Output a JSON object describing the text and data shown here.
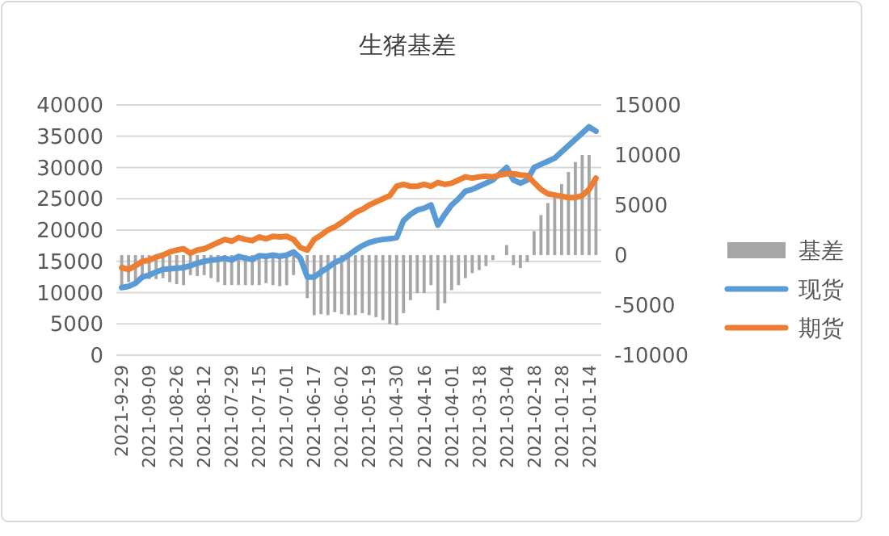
{
  "chart_data": {
    "type": "bar",
    "title": "生猪基差",
    "categories": [
      "2021-9-29",
      null,
      null,
      null,
      "2021-09-09",
      null,
      null,
      null,
      "2021-08-26",
      null,
      null,
      null,
      "2021-08-12",
      null,
      null,
      null,
      "2021-07-29",
      null,
      null,
      null,
      "2021-07-15",
      null,
      null,
      null,
      "2021-07-01",
      null,
      null,
      null,
      "2021-06-17",
      null,
      null,
      null,
      "2021-06-02",
      null,
      null,
      null,
      "2021-05-19",
      null,
      null,
      null,
      "2021-04-30",
      null,
      null,
      null,
      "2021-04-16",
      null,
      null,
      null,
      "2021-04-01",
      null,
      null,
      null,
      "2021-03-18",
      null,
      null,
      null,
      "2021-03-04",
      null,
      null,
      null,
      "2021-02-18",
      null,
      null,
      null,
      "2021-01-28",
      null,
      null,
      null,
      "2021-01-14",
      null
    ],
    "series": [
      {
        "name": "基差",
        "axis": "y2",
        "color": "#a6a6a6",
        "values": [
          -3200,
          -2700,
          -2800,
          -2500,
          -2400,
          -2400,
          -2300,
          -2700,
          -2900,
          -3000,
          -2000,
          -2100,
          -2000,
          -2300,
          -2700,
          -3000,
          -3000,
          -3000,
          -3000,
          -3000,
          -3000,
          -2800,
          -3000,
          -3100,
          -3000,
          -2000,
          null,
          -4300,
          -6000,
          -5900,
          -6000,
          -5700,
          -5900,
          -6000,
          -6000,
          -5800,
          -6000,
          -6200,
          -6500,
          -6900,
          -7000,
          -5800,
          -4500,
          -3800,
          -3800,
          -3000,
          -5500,
          -4800,
          -3500,
          -3000,
          -2300,
          -1800,
          -1500,
          -1100,
          -500,
          null,
          1000,
          -1000,
          -1300,
          -700,
          2400,
          4000,
          5200,
          5900,
          7100,
          8300,
          9300,
          10000,
          10000,
          7500
        ]
      },
      {
        "name": "现货",
        "type": "line",
        "color": "#5b9bd5",
        "values": [
          10800,
          11000,
          11500,
          12500,
          12800,
          13300,
          13700,
          13800,
          13900,
          14000,
          14300,
          14700,
          15000,
          15200,
          15300,
          15500,
          15200,
          15800,
          15500,
          15300,
          15900,
          15800,
          16000,
          15800,
          16000,
          16500,
          15500,
          12500,
          12500,
          13300,
          14000,
          14800,
          15300,
          16000,
          16800,
          17500,
          18000,
          18300,
          18500,
          18600,
          18800,
          21500,
          22500,
          23200,
          23500,
          24000,
          20800,
          22500,
          24000,
          25000,
          26200,
          26500,
          27000,
          27500,
          28000,
          29000,
          30000,
          28000,
          27500,
          28000,
          30000,
          30500,
          31000,
          31500,
          32500,
          33500,
          34500,
          35500,
          36500,
          35800
        ]
      },
      {
        "name": "期货",
        "type": "line",
        "color": "#ed7d31",
        "values": [
          14000,
          13700,
          14300,
          15000,
          15200,
          15700,
          16000,
          16500,
          16800,
          17000,
          16300,
          16800,
          17000,
          17500,
          18000,
          18500,
          18200,
          18800,
          18500,
          18300,
          18900,
          18600,
          19000,
          18900,
          19000,
          18500,
          17200,
          16800,
          18500,
          19200,
          20000,
          20500,
          21200,
          22000,
          22800,
          23300,
          24000,
          24500,
          25000,
          25500,
          27000,
          27300,
          27000,
          27000,
          27300,
          27000,
          27600,
          27300,
          27500,
          28000,
          28500,
          28300,
          28500,
          28600,
          28500,
          28800,
          29000,
          29000,
          28800,
          28700,
          27600,
          26500,
          25800,
          25600,
          25400,
          25200,
          25200,
          25500,
          26500,
          28300
        ]
      }
    ],
    "ylim": [
      0,
      40000
    ],
    "yticks": [
      0,
      5000,
      10000,
      15000,
      20000,
      25000,
      30000,
      35000,
      40000
    ],
    "y2lim": [
      -10000,
      15000
    ],
    "y2ticks": [
      -10000,
      -5000,
      0,
      5000,
      10000,
      15000
    ],
    "grid": "y",
    "legend": "right"
  }
}
